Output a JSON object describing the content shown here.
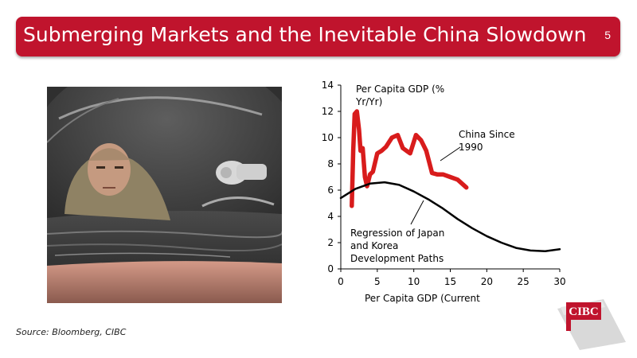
{
  "slide": {
    "title": "Submerging Markets and the Inevitable China Slowdown",
    "number": "5",
    "source": "Source: Bloomberg, CIBC",
    "logo_text": "CIBC",
    "colors": {
      "accent": "#c0142d",
      "china_series": "#d81c1c",
      "regression_series": "#000000"
    }
  },
  "chart_data": {
    "type": "line",
    "title": "",
    "xlabel": "Per Capita GDP (Current",
    "ylabel": "Per Capita GDP (% Yr/Yr)",
    "xlim": [
      0,
      30
    ],
    "ylim": [
      0,
      14
    ],
    "xticks": [
      "0",
      "5",
      "10",
      "15",
      "20",
      "25",
      "30"
    ],
    "yticks": [
      "0",
      "2",
      "4",
      "6",
      "8",
      "10",
      "12",
      "14"
    ],
    "grid": false,
    "legend": "none",
    "annotations": [
      {
        "lines": [
          "Per Capita GDP (%",
          "Yr/Yr)"
        ]
      },
      {
        "lines": [
          "China Since",
          "1990"
        ]
      },
      {
        "lines": [
          "Regression of Japan",
          "and Korea",
          "Development Paths"
        ]
      }
    ],
    "series": [
      {
        "name": "China Since 1990",
        "x": [
          1.5,
          1.7,
          1.9,
          2.2,
          2.5,
          2.7,
          3.0,
          3.3,
          3.6,
          4.0,
          4.4,
          5.0,
          5.6,
          6.2,
          7.0,
          7.8,
          8.5,
          9.5,
          10.3,
          11.0,
          11.7,
          12.5,
          13.2,
          14.0,
          15.0,
          16.0,
          17.2
        ],
        "y": [
          4.8,
          9.0,
          11.8,
          12.0,
          10.6,
          9.0,
          9.2,
          7.0,
          6.3,
          7.2,
          7.4,
          8.8,
          9.0,
          9.3,
          10.0,
          10.2,
          9.2,
          8.8,
          10.2,
          9.8,
          9.0,
          7.3,
          7.2,
          7.2,
          7.0,
          6.8,
          6.2
        ]
      },
      {
        "name": "Regression of Japan and Korea Development Paths",
        "x": [
          0,
          2,
          4,
          6,
          8,
          10,
          12,
          14,
          16,
          18,
          20,
          22,
          24,
          26,
          28,
          30
        ],
        "y": [
          5.4,
          6.1,
          6.5,
          6.6,
          6.4,
          5.9,
          5.3,
          4.6,
          3.8,
          3.1,
          2.5,
          2.0,
          1.6,
          1.4,
          1.35,
          1.5
        ]
      }
    ]
  }
}
